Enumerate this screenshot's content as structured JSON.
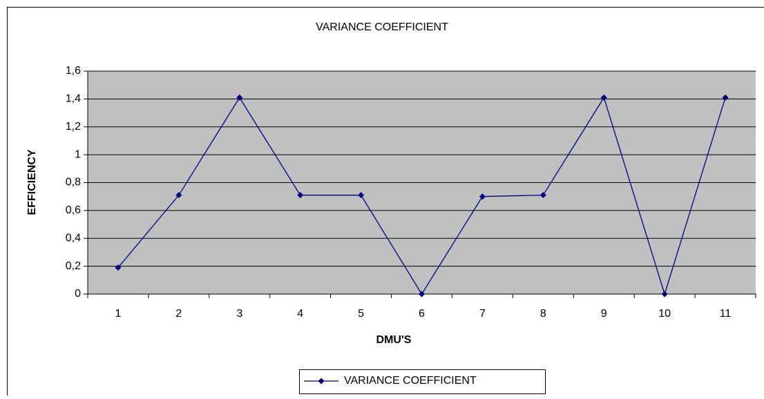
{
  "chart_data": {
    "type": "line",
    "title": "VARIANCE COEFFICIENT",
    "x_label": "DMU'S",
    "y_label": "EFFICIENCY",
    "categories": [
      "1",
      "2",
      "3",
      "4",
      "5",
      "6",
      "7",
      "8",
      "9",
      "10",
      "11"
    ],
    "series": [
      {
        "name": "VARIANCE COEFFICIENT",
        "color": "#000080",
        "values": [
          0.19,
          0.71,
          1.41,
          0.71,
          0.71,
          0,
          0.7,
          0.71,
          1.41,
          0,
          1.41
        ]
      }
    ],
    "ylim": [
      0,
      1.6
    ],
    "yticks": [
      0,
      {
        "value": 0.2,
        "label": "0,2"
      },
      {
        "value": 0.4,
        "label": "0,4"
      },
      {
        "value": 0.6,
        "label": "0,6"
      },
      {
        "value": 0.8,
        "label": "0,8"
      },
      1,
      {
        "value": 1.2,
        "label": "1,2"
      },
      {
        "value": 1.4,
        "label": "1,4"
      },
      {
        "value": 1.6,
        "label": "1,6"
      }
    ],
    "grid": true,
    "plot_background": "#c0c0c0",
    "legend": "bottom"
  }
}
